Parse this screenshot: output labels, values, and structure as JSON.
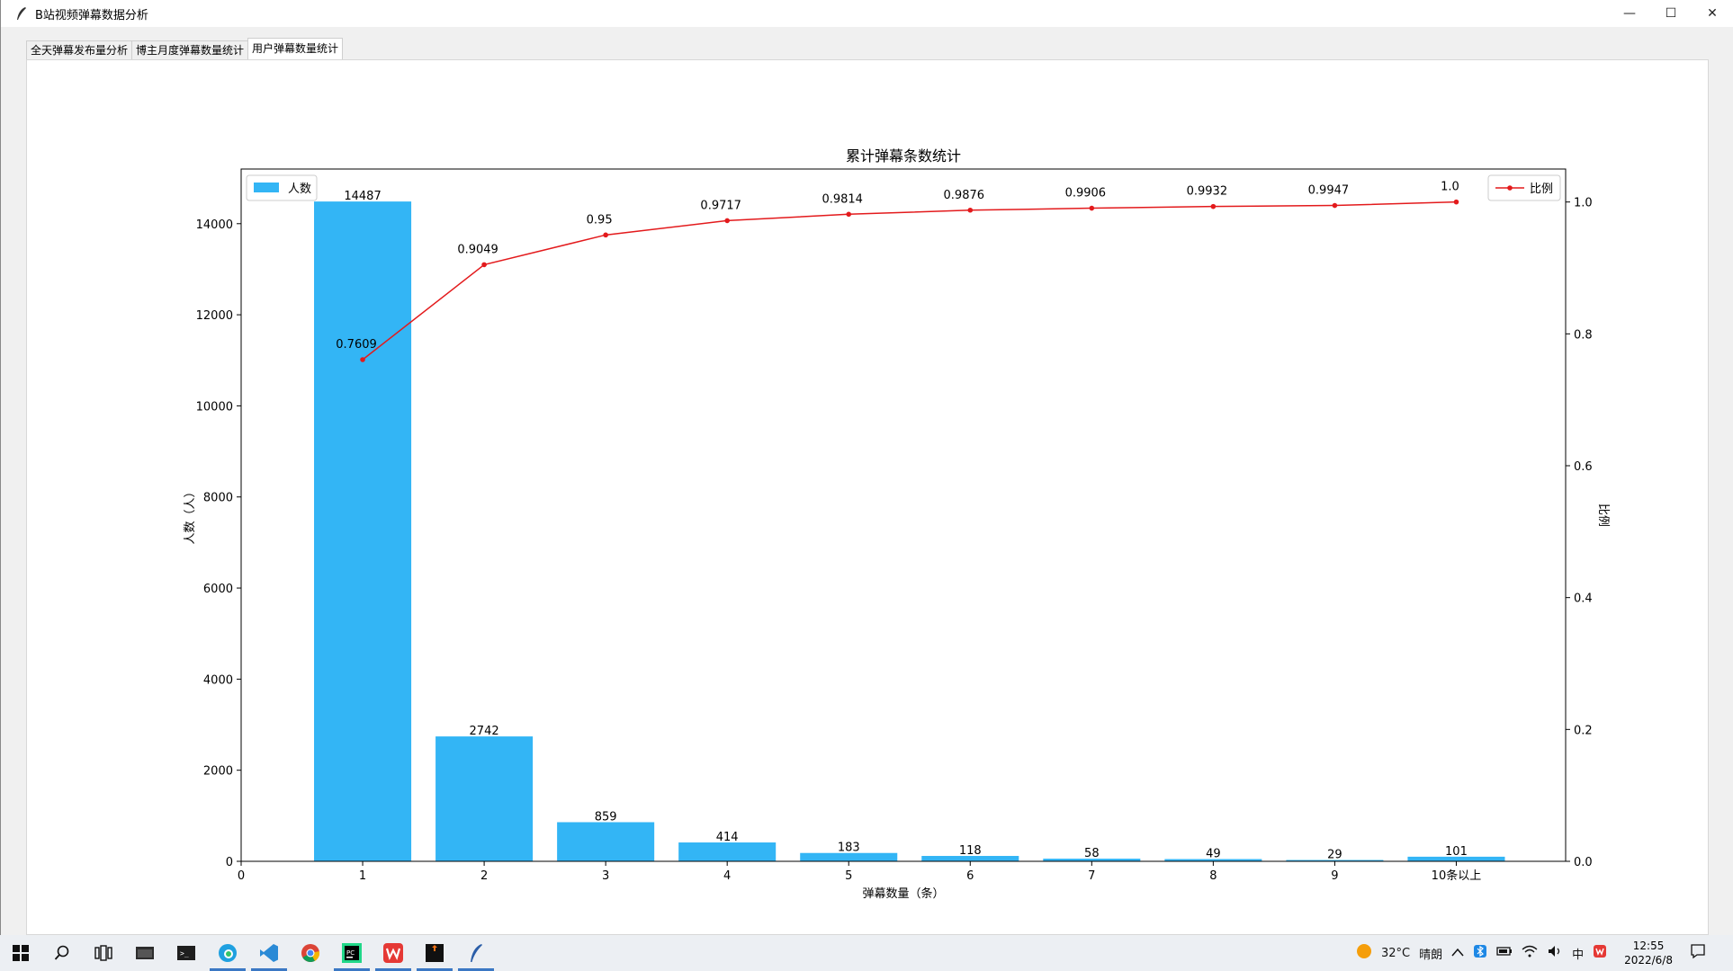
{
  "window": {
    "title": "B站视频弹幕数据分析",
    "controls": {
      "minimize": "—",
      "maximize": "☐",
      "close": "✕"
    }
  },
  "tabs": [
    {
      "label": "全天弹幕发布量分析",
      "active": false
    },
    {
      "label": "博主月度弹幕数量统计",
      "active": false
    },
    {
      "label": "用户弹幕数量统计",
      "active": true
    }
  ],
  "chart_data": {
    "type": "bar",
    "title": "累计弹幕条数统计",
    "xlabel": "弹幕数量（条）",
    "ylabel": "人数（人）",
    "y2label": "比例",
    "x_ticks": [
      "0",
      "1",
      "2",
      "3",
      "4",
      "5",
      "6",
      "7",
      "8",
      "9",
      "10条以上"
    ],
    "categories": [
      "1",
      "2",
      "3",
      "4",
      "5",
      "6",
      "7",
      "8",
      "9",
      "10条以上"
    ],
    "ylim": [
      0,
      15200
    ],
    "y_ticks": [
      "0",
      "2000",
      "4000",
      "6000",
      "8000",
      "10000",
      "12000",
      "14000"
    ],
    "y2lim": [
      0,
      1.05
    ],
    "y2_ticks": [
      "0.0",
      "0.2",
      "0.4",
      "0.6",
      "0.8",
      "1.0"
    ],
    "series": [
      {
        "name": "人数",
        "type": "bar",
        "color": "#33b5f5",
        "values": [
          14487,
          2742,
          859,
          414,
          183,
          118,
          58,
          49,
          29,
          101
        ],
        "labels": [
          "14487",
          "2742",
          "859",
          "414",
          "183",
          "118",
          "58",
          "49",
          "29",
          "101"
        ]
      },
      {
        "name": "比例",
        "type": "line",
        "axis": "right",
        "color": "#e31a1c",
        "values": [
          0.7609,
          0.9049,
          0.95,
          0.9717,
          0.9814,
          0.9876,
          0.9906,
          0.9932,
          0.9947,
          1.0
        ],
        "labels": [
          "0.7609",
          "0.9049",
          "0.95",
          "0.9717",
          "0.9814",
          "0.9876",
          "0.9906",
          "0.9932",
          "0.9947",
          "1.0"
        ]
      }
    ],
    "legend_left_placement": "upper-left",
    "legend_right_placement": "upper-right",
    "grid": false
  },
  "taskbar": {
    "weather_temp": "32°C",
    "weather_desc": "晴朗",
    "time": "12:55",
    "date": "2022/6/8",
    "ime": "中"
  }
}
